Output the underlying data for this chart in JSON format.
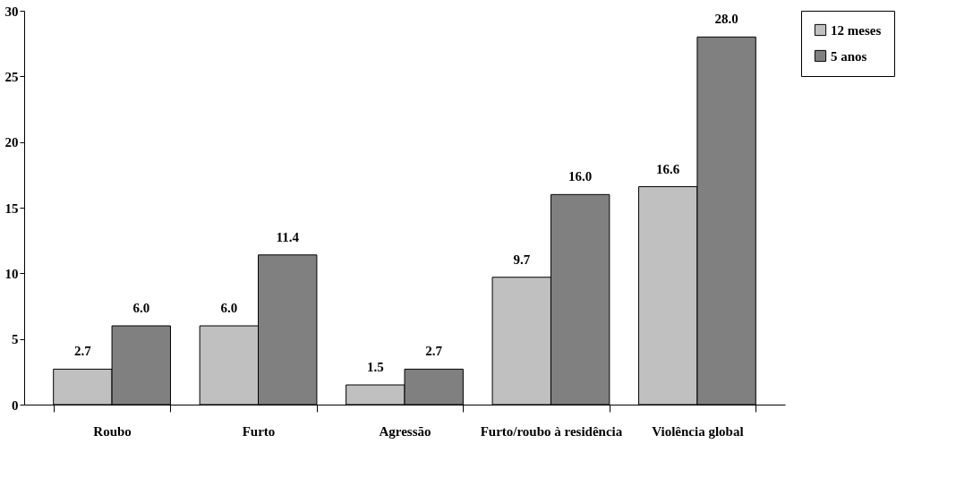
{
  "chart_data": {
    "type": "bar",
    "categories": [
      "Roubo",
      "Furto",
      "Agressão",
      "Furto/roubo à residência",
      "Violência global"
    ],
    "series": [
      {
        "name": "12 meses",
        "color": "#c0c0c0",
        "values": [
          2.7,
          6.0,
          1.5,
          9.7,
          16.6
        ],
        "value_labels": [
          "2.7",
          "6.0",
          "1.5",
          "9.7",
          "16.6"
        ]
      },
      {
        "name": "5 anos",
        "color": "#808080",
        "values": [
          6.0,
          11.4,
          2.7,
          16.0,
          28.0
        ],
        "value_labels": [
          "6.0",
          "11.4",
          "2.7",
          "16.0",
          "28.0"
        ]
      }
    ],
    "ylim": [
      0,
      30
    ],
    "yticks": [
      0,
      5,
      10,
      15,
      20,
      25,
      30
    ],
    "grid": false,
    "legend": "right"
  }
}
